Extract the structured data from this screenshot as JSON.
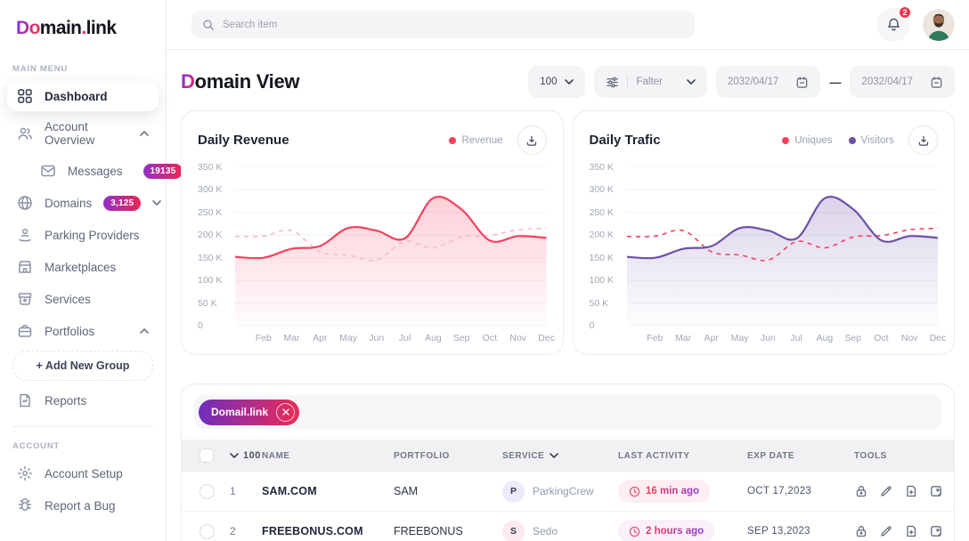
{
  "app": {
    "logo_accent": "Do",
    "logo_main": "main",
    "logo_dot": ".",
    "logo_tld": "link"
  },
  "topbar": {
    "search_placeholder": "Search item",
    "notification_count": "2"
  },
  "sidebar": {
    "main_menu_label": "MAIN MENU",
    "account_label": "ACCOUNT",
    "items": [
      {
        "label": "Dashboard"
      },
      {
        "label": "Account Overview"
      },
      {
        "label": "Messages",
        "badge": "19135"
      },
      {
        "label": "Domains",
        "badge": "3,125"
      },
      {
        "label": "Parking Providers"
      },
      {
        "label": "Marketplaces"
      },
      {
        "label": "Services"
      },
      {
        "label": "Portfolios"
      },
      {
        "label": "+  Add New Group"
      },
      {
        "label": "Reports"
      }
    ],
    "account_items": [
      {
        "label": "Account Setup"
      },
      {
        "label": "Report a Bug"
      }
    ]
  },
  "header": {
    "title_accent": "D",
    "title_rest": "omain View",
    "count_select": "100",
    "filter_label": "Falter",
    "date_from": "2032/04/17",
    "date_separator": "—",
    "date_to": "2032/04/17"
  },
  "chart_data": [
    {
      "type": "area",
      "title": "Daily Revenue",
      "legend_position": "top-right",
      "grid": true,
      "legend": [
        {
          "name": "Revenue",
          "color": "#f5415f"
        }
      ],
      "x_ticks": [
        "Feb",
        "Mar",
        "Apr",
        "May",
        "Jun",
        "Jul",
        "Aug",
        "Sep",
        "Oct",
        "Nov",
        "Dec"
      ],
      "y_ticks": [
        "350 K",
        "300 K",
        "250 K",
        "200 K",
        "150 K",
        "100 K",
        "50 K",
        "0"
      ],
      "ylim": [
        0,
        350
      ],
      "series": [
        {
          "name": "Revenue",
          "style": "solid",
          "color": "#f5415f",
          "fill": true,
          "values": [
            152,
            150,
            170,
            176,
            216,
            210,
            193,
            282,
            257,
            188,
            198,
            194
          ]
        },
        {
          "name": "",
          "style": "dashed",
          "color": "#f7bac7",
          "fill": false,
          "values": [
            197,
            198,
            210,
            163,
            156,
            145,
            186,
            172,
            196,
            199,
            212,
            215
          ]
        }
      ]
    },
    {
      "type": "area",
      "title": "Daily Trafic",
      "legend_position": "top-right",
      "grid": true,
      "legend": [
        {
          "name": "Uniques",
          "color": "#f5415f"
        },
        {
          "name": "Visitors",
          "color": "#6e51a5"
        }
      ],
      "x_ticks": [
        "Feb",
        "Mar",
        "Apr",
        "May",
        "Jun",
        "Jul",
        "Aug",
        "Sep",
        "Oct",
        "Nov",
        "Dec"
      ],
      "y_ticks": [
        "350 K",
        "300 K",
        "250 K",
        "200 K",
        "150 K",
        "100 K",
        "50 K",
        "0"
      ],
      "ylim": [
        0,
        350
      ],
      "series": [
        {
          "name": "Visitors",
          "style": "solid",
          "color": "#6e51a5",
          "fill": true,
          "values": [
            152,
            150,
            170,
            176,
            216,
            210,
            193,
            282,
            257,
            188,
            198,
            194
          ]
        },
        {
          "name": "Uniques",
          "style": "dashed",
          "color": "#f5415f",
          "fill": false,
          "values": [
            197,
            198,
            210,
            163,
            156,
            145,
            186,
            172,
            196,
            199,
            212,
            215
          ]
        }
      ]
    }
  ],
  "table": {
    "filter_chip": "Domail.link",
    "columns": {
      "count": "100",
      "name": "NAME",
      "portfolio": "PORTFOLIO",
      "service": "SERVICE",
      "last_activity": "LAST ACTIVITY",
      "exp_date": "EXP DATE",
      "tools": "TOOLS"
    },
    "rows": [
      {
        "num": "1",
        "name": "SAM.COM",
        "portfolio": "SAM",
        "service_initial": "P",
        "service": "ParkingCrew",
        "last_activity": "16 min ago",
        "exp_date": "OCT 17,2023"
      },
      {
        "num": "2",
        "name": "FREEBONUS.COM",
        "portfolio": "FREEBONUS",
        "service_initial": "S",
        "service": "Sedo",
        "last_activity": "2 hours ago",
        "exp_date": "SEP 13,2023"
      }
    ]
  }
}
